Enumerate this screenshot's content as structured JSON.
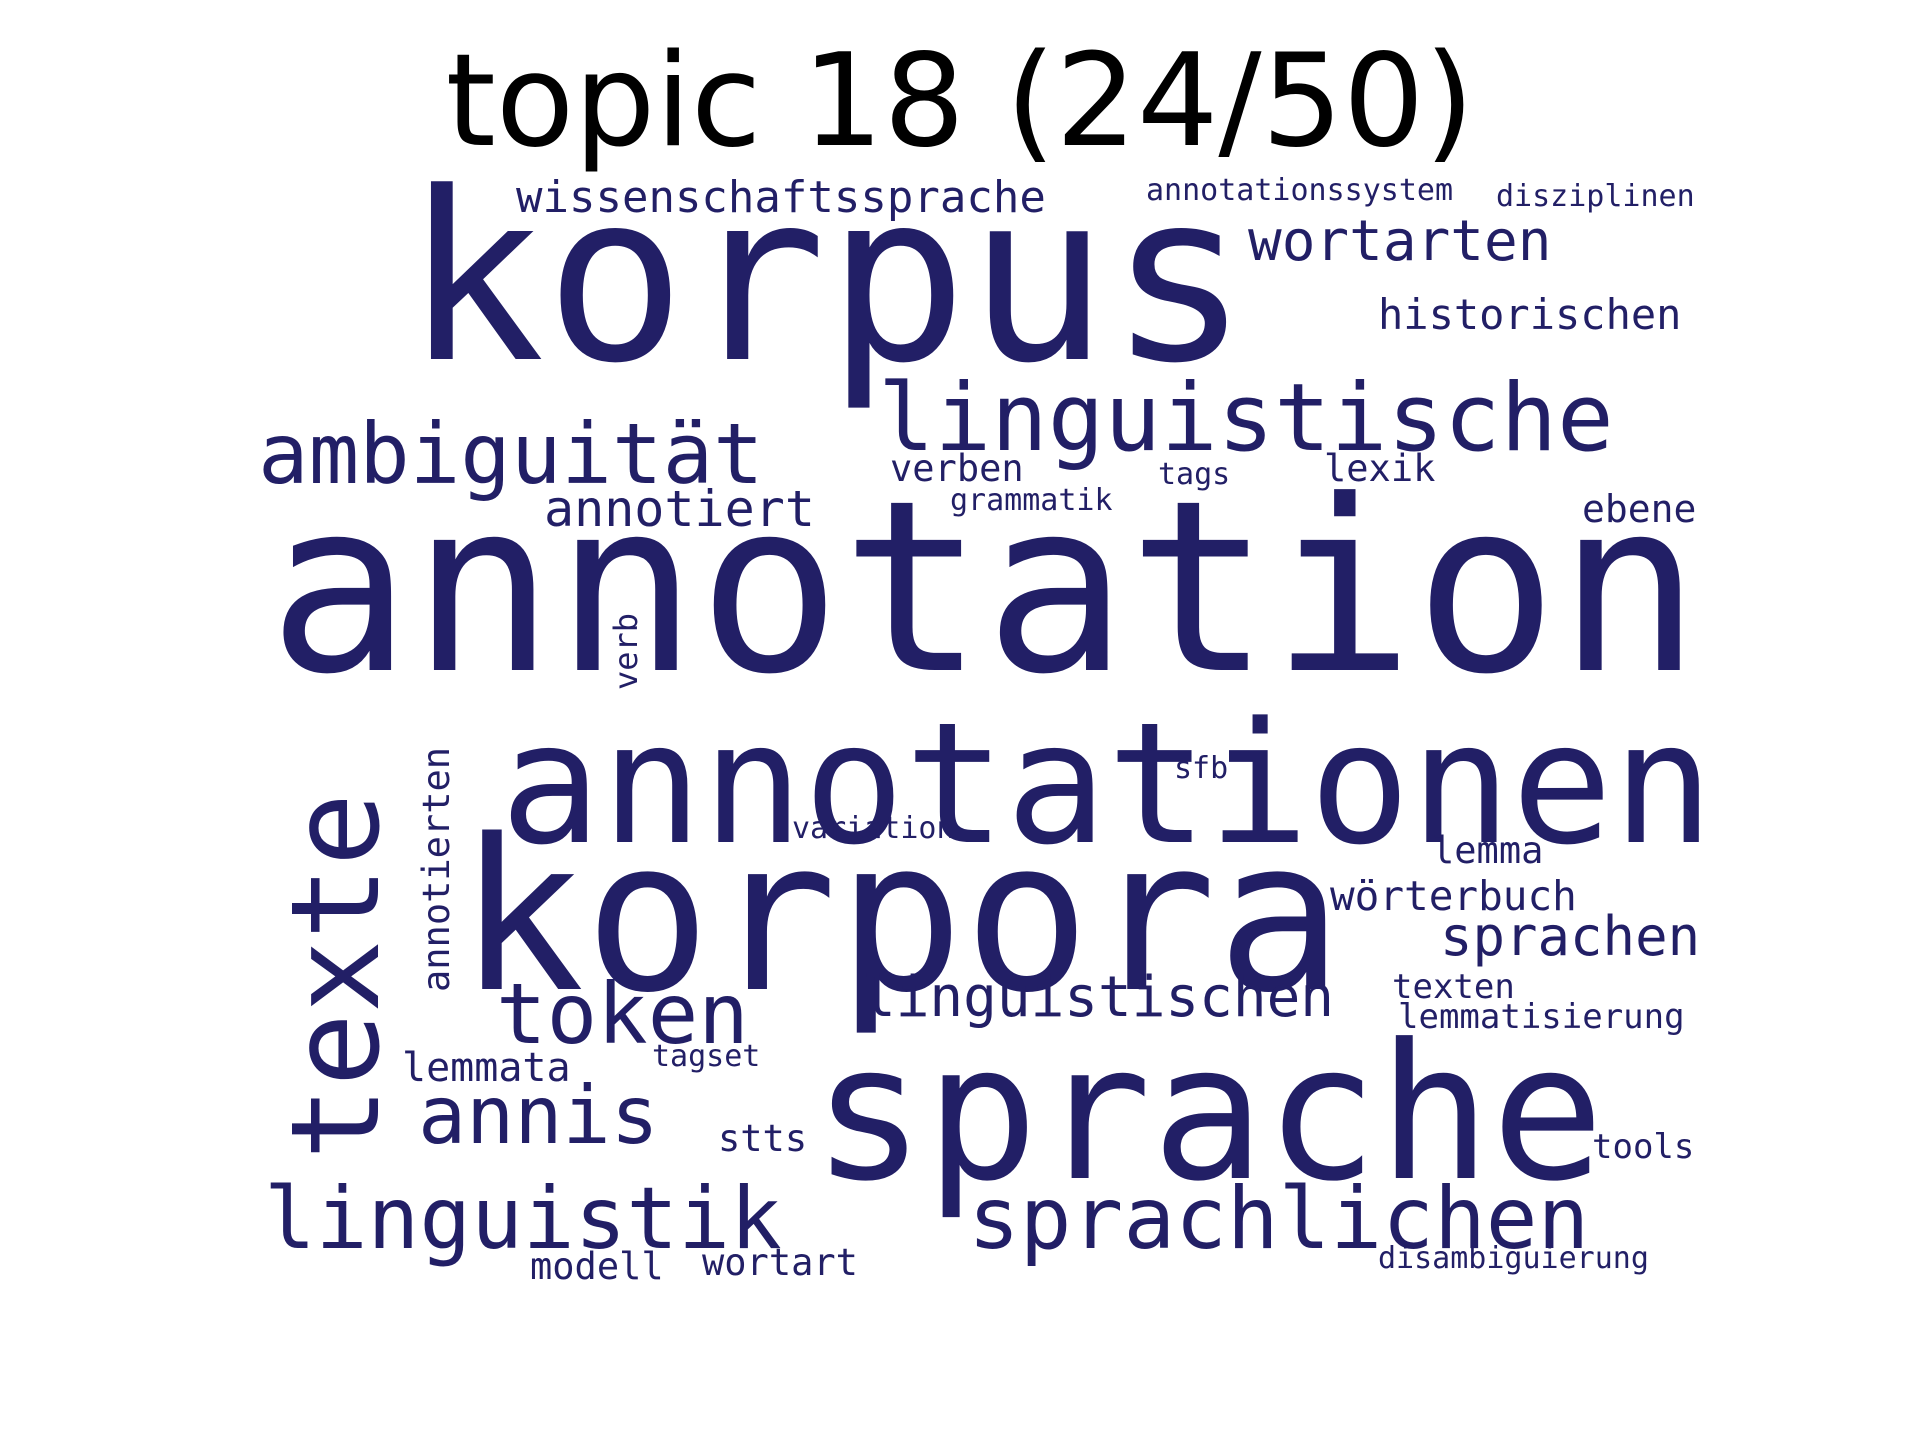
{
  "title": "topic 18 (24/50)",
  "word_color": "#221f66",
  "words": [
    "korpus",
    "annotation",
    "annotationen",
    "korpora",
    "sprache",
    "texte",
    "linguistische",
    "ambiguität",
    "sprachlichen",
    "linguistik",
    "token",
    "annis",
    "linguistischen",
    "wissenschaftssprache",
    "wortarten",
    "annotiert",
    "sprachen",
    "historischen",
    "annotierten",
    "wörterbuch",
    "verben",
    "ebene",
    "lexik",
    "lemmata",
    "lemma",
    "wortart",
    "annotationssystem",
    "modell",
    "disziplinen",
    "texten",
    "lemmatisierung",
    "stts",
    "tools",
    "disambiguierung",
    "grammatik",
    "tagset",
    "tags",
    "verb",
    "variation",
    "sfb"
  ]
}
